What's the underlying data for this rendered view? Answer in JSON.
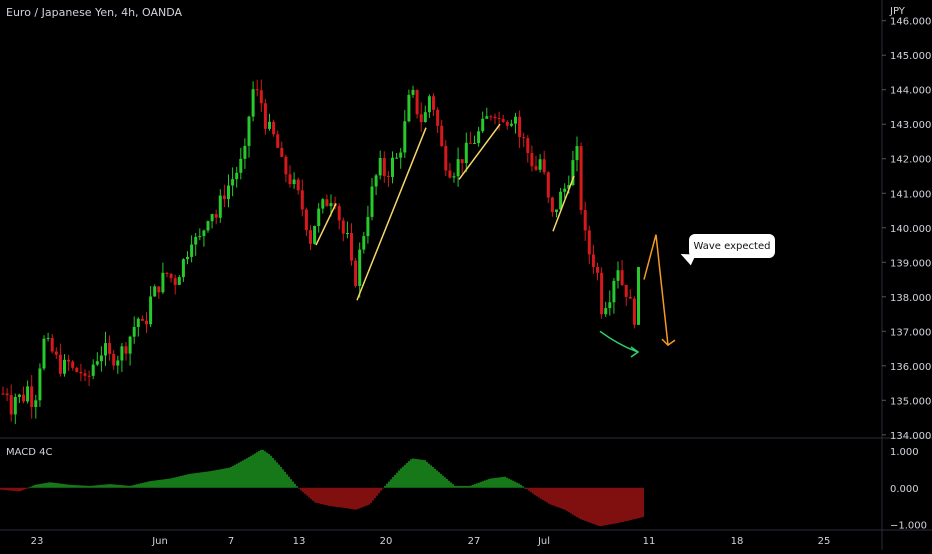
{
  "chart_title": "Euro / Japanese Yen, 4h, OANDA",
  "price_axis_unit": "JPY",
  "macd_label": "MACD 4C",
  "annotation": "Wave expected",
  "colors": {
    "up": "#27c92c",
    "down": "#d6191c",
    "line_yellow": "#f7d76a",
    "arrow_orange": "#f59a23",
    "arrow_green": "#2ed56a",
    "grid": "#1e2229",
    "axis_text": "#d1d4dc"
  },
  "chart_data": [
    {
      "type": "candlestick",
      "title": "Euro / Japanese Yen, 4h, OANDA",
      "y_axis_unit": "JPY",
      "y_ticks": [
        134.0,
        135.0,
        136.0,
        137.0,
        138.0,
        139.0,
        140.0,
        141.0,
        142.0,
        143.0,
        144.0,
        145.0,
        146.0
      ],
      "ylim": [
        133.85,
        146.6
      ],
      "x_tick_labels": [
        "23",
        "Jun",
        "7",
        "13",
        "20",
        "27",
        "Jul",
        "11",
        "18",
        "25"
      ],
      "close_path": [
        {
          "x": 0,
          "y": 134.9
        },
        {
          "x": 6,
          "y": 135.5
        },
        {
          "x": 10,
          "y": 134.7
        },
        {
          "x": 16,
          "y": 135.2
        },
        {
          "x": 22,
          "y": 135.0
        },
        {
          "x": 28,
          "y": 135.4
        },
        {
          "x": 34,
          "y": 134.8
        },
        {
          "x": 40,
          "y": 136.1
        },
        {
          "x": 44,
          "y": 136.7
        },
        {
          "x": 50,
          "y": 136.5
        },
        {
          "x": 56,
          "y": 136.2
        },
        {
          "x": 62,
          "y": 135.9
        },
        {
          "x": 68,
          "y": 136.1
        },
        {
          "x": 74,
          "y": 135.8
        },
        {
          "x": 80,
          "y": 135.9
        },
        {
          "x": 86,
          "y": 135.4
        },
        {
          "x": 92,
          "y": 136.0
        },
        {
          "x": 98,
          "y": 136.3
        },
        {
          "x": 104,
          "y": 136.5
        },
        {
          "x": 110,
          "y": 136.2
        },
        {
          "x": 118,
          "y": 136.3
        },
        {
          "x": 126,
          "y": 136.6
        },
        {
          "x": 132,
          "y": 137.0
        },
        {
          "x": 138,
          "y": 137.4
        },
        {
          "x": 144,
          "y": 137.0
        },
        {
          "x": 150,
          "y": 137.9
        },
        {
          "x": 156,
          "y": 138.2
        },
        {
          "x": 162,
          "y": 138.5
        },
        {
          "x": 168,
          "y": 138.7
        },
        {
          "x": 174,
          "y": 138.4
        },
        {
          "x": 180,
          "y": 138.8
        },
        {
          "x": 186,
          "y": 139.2
        },
        {
          "x": 192,
          "y": 139.8
        },
        {
          "x": 198,
          "y": 139.5
        },
        {
          "x": 204,
          "y": 140.0
        },
        {
          "x": 210,
          "y": 140.6
        },
        {
          "x": 216,
          "y": 140.3
        },
        {
          "x": 222,
          "y": 140.9
        },
        {
          "x": 228,
          "y": 141.2
        },
        {
          "x": 234,
          "y": 141.5
        },
        {
          "x": 240,
          "y": 141.8
        },
        {
          "x": 246,
          "y": 142.2
        },
        {
          "x": 250,
          "y": 143.6
        },
        {
          "x": 254,
          "y": 144.1
        },
        {
          "x": 258,
          "y": 143.8
        },
        {
          "x": 262,
          "y": 143.6
        },
        {
          "x": 266,
          "y": 143.0
        },
        {
          "x": 270,
          "y": 142.8
        },
        {
          "x": 276,
          "y": 142.5
        },
        {
          "x": 282,
          "y": 141.8
        },
        {
          "x": 288,
          "y": 141.5
        },
        {
          "x": 294,
          "y": 141.2
        },
        {
          "x": 300,
          "y": 140.8
        },
        {
          "x": 306,
          "y": 140.2
        },
        {
          "x": 310,
          "y": 139.6
        },
        {
          "x": 316,
          "y": 140.3
        },
        {
          "x": 322,
          "y": 140.6
        },
        {
          "x": 328,
          "y": 140.8
        },
        {
          "x": 334,
          "y": 141.0
        },
        {
          "x": 338,
          "y": 140.5
        },
        {
          "x": 342,
          "y": 139.8
        },
        {
          "x": 346,
          "y": 139.9
        },
        {
          "x": 350,
          "y": 139.2
        },
        {
          "x": 354,
          "y": 138.2
        },
        {
          "x": 358,
          "y": 139.0
        },
        {
          "x": 362,
          "y": 139.6
        },
        {
          "x": 366,
          "y": 140.2
        },
        {
          "x": 370,
          "y": 140.8
        },
        {
          "x": 374,
          "y": 141.3
        },
        {
          "x": 380,
          "y": 141.8
        },
        {
          "x": 386,
          "y": 141.5
        },
        {
          "x": 392,
          "y": 141.9
        },
        {
          "x": 398,
          "y": 142.0
        },
        {
          "x": 404,
          "y": 142.8
        },
        {
          "x": 408,
          "y": 143.6
        },
        {
          "x": 412,
          "y": 143.9
        },
        {
          "x": 416,
          "y": 143.5
        },
        {
          "x": 420,
          "y": 143.2
        },
        {
          "x": 424,
          "y": 143.0
        },
        {
          "x": 428,
          "y": 143.9
        },
        {
          "x": 432,
          "y": 143.7
        },
        {
          "x": 436,
          "y": 143.2
        },
        {
          "x": 440,
          "y": 142.5
        },
        {
          "x": 444,
          "y": 142.0
        },
        {
          "x": 448,
          "y": 141.8
        },
        {
          "x": 452,
          "y": 141.6
        },
        {
          "x": 458,
          "y": 141.9
        },
        {
          "x": 464,
          "y": 142.1
        },
        {
          "x": 470,
          "y": 142.4
        },
        {
          "x": 476,
          "y": 142.6
        },
        {
          "x": 482,
          "y": 142.9
        },
        {
          "x": 488,
          "y": 143.2
        },
        {
          "x": 494,
          "y": 143.5
        },
        {
          "x": 498,
          "y": 143.1
        },
        {
          "x": 504,
          "y": 143.3
        },
        {
          "x": 510,
          "y": 143.0
        },
        {
          "x": 514,
          "y": 143.6
        },
        {
          "x": 518,
          "y": 142.7
        },
        {
          "x": 524,
          "y": 142.5
        },
        {
          "x": 530,
          "y": 142.0
        },
        {
          "x": 536,
          "y": 141.7
        },
        {
          "x": 540,
          "y": 142.0
        },
        {
          "x": 544,
          "y": 141.5
        },
        {
          "x": 548,
          "y": 140.8
        },
        {
          "x": 552,
          "y": 140.3
        },
        {
          "x": 556,
          "y": 140.6
        },
        {
          "x": 560,
          "y": 140.9
        },
        {
          "x": 566,
          "y": 141.2
        },
        {
          "x": 572,
          "y": 141.8
        },
        {
          "x": 578,
          "y": 142.2
        },
        {
          "x": 582,
          "y": 140.2
        },
        {
          "x": 586,
          "y": 139.6
        },
        {
          "x": 590,
          "y": 139.2
        },
        {
          "x": 594,
          "y": 139.0
        },
        {
          "x": 598,
          "y": 138.6
        },
        {
          "x": 602,
          "y": 137.6
        },
        {
          "x": 606,
          "y": 137.9
        },
        {
          "x": 610,
          "y": 138.1
        },
        {
          "x": 614,
          "y": 138.6
        },
        {
          "x": 618,
          "y": 138.9
        },
        {
          "x": 622,
          "y": 138.4
        },
        {
          "x": 626,
          "y": 138.2
        },
        {
          "x": 630,
          "y": 137.8
        },
        {
          "x": 634,
          "y": 137.3
        },
        {
          "x": 638,
          "y": 138.6
        },
        {
          "x": 642,
          "y": 138.7
        }
      ],
      "drawings": [
        {
          "kind": "trend-line",
          "color": "yellow",
          "points": [
            {
              "x": 316,
              "y": 139.5
            },
            {
              "x": 336,
              "y": 140.7
            }
          ]
        },
        {
          "kind": "trend-line",
          "color": "yellow",
          "points": [
            {
              "x": 357,
              "y": 137.9
            },
            {
              "x": 426,
              "y": 142.9
            }
          ]
        },
        {
          "kind": "trend-line",
          "color": "yellow",
          "points": [
            {
              "x": 459,
              "y": 141.4
            },
            {
              "x": 500,
              "y": 143.0
            }
          ]
        },
        {
          "kind": "trend-line",
          "color": "yellow",
          "points": [
            {
              "x": 553,
              "y": 139.9
            },
            {
              "x": 574,
              "y": 141.5
            }
          ]
        },
        {
          "kind": "projection-arrow",
          "color": "orange",
          "points": [
            {
              "x": 644,
              "y": 138.5
            },
            {
              "x": 656,
              "y": 139.8
            },
            {
              "x": 668,
              "y": 136.6
            }
          ]
        },
        {
          "kind": "curved-arrow",
          "color": "green",
          "points": [
            {
              "x": 600,
              "y": 137.0
            },
            {
              "x": 638,
              "y": 136.4
            }
          ]
        }
      ]
    },
    {
      "type": "histogram",
      "title": "MACD 4C",
      "y_ticks": [
        1.0,
        0.0,
        -1.0
      ],
      "ylim": [
        -1.15,
        1.3
      ],
      "values": [
        {
          "x": 0,
          "v": -0.05
        },
        {
          "x": 20,
          "v": -0.1
        },
        {
          "x": 35,
          "v": 0.08
        },
        {
          "x": 50,
          "v": 0.15
        },
        {
          "x": 70,
          "v": 0.08
        },
        {
          "x": 90,
          "v": 0.05
        },
        {
          "x": 110,
          "v": 0.1
        },
        {
          "x": 130,
          "v": 0.05
        },
        {
          "x": 150,
          "v": 0.18
        },
        {
          "x": 170,
          "v": 0.25
        },
        {
          "x": 190,
          "v": 0.38
        },
        {
          "x": 210,
          "v": 0.45
        },
        {
          "x": 230,
          "v": 0.55
        },
        {
          "x": 250,
          "v": 0.85
        },
        {
          "x": 262,
          "v": 1.05
        },
        {
          "x": 270,
          "v": 0.9
        },
        {
          "x": 280,
          "v": 0.6
        },
        {
          "x": 292,
          "v": 0.2
        },
        {
          "x": 300,
          "v": -0.05
        },
        {
          "x": 315,
          "v": -0.4
        },
        {
          "x": 330,
          "v": -0.5
        },
        {
          "x": 345,
          "v": -0.55
        },
        {
          "x": 356,
          "v": -0.6
        },
        {
          "x": 370,
          "v": -0.45
        },
        {
          "x": 385,
          "v": 0.05
        },
        {
          "x": 400,
          "v": 0.5
        },
        {
          "x": 412,
          "v": 0.8
        },
        {
          "x": 425,
          "v": 0.75
        },
        {
          "x": 440,
          "v": 0.4
        },
        {
          "x": 455,
          "v": 0.05
        },
        {
          "x": 470,
          "v": 0.05
        },
        {
          "x": 490,
          "v": 0.25
        },
        {
          "x": 505,
          "v": 0.3
        },
        {
          "x": 520,
          "v": 0.1
        },
        {
          "x": 535,
          "v": -0.2
        },
        {
          "x": 550,
          "v": -0.45
        },
        {
          "x": 565,
          "v": -0.6
        },
        {
          "x": 580,
          "v": -0.85
        },
        {
          "x": 600,
          "v": -1.05
        },
        {
          "x": 620,
          "v": -0.95
        },
        {
          "x": 643,
          "v": -0.8
        }
      ]
    }
  ]
}
